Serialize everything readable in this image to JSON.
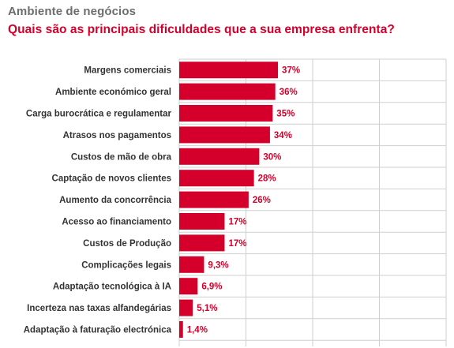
{
  "header": {
    "kicker": "Ambiente de negócios",
    "title": "Quais são as principais dificuldades que a sua empresa enfrenta?"
  },
  "colors": {
    "bar": "#d4002b",
    "value_label": "#d4002b",
    "category_label": "#333333",
    "grid": "#cfcfcf",
    "kicker": "#6d6d6d",
    "title": "#d4002b"
  },
  "chart_data": {
    "type": "bar",
    "orientation": "horizontal",
    "categories": [
      "Margens comerciais",
      "Ambiente económico geral",
      "Carga burocrática e regulamentar",
      "Atrasos nos pagamentos",
      "Custos de mão de obra",
      "Captação de novos clientes",
      "Aumento da concorrência",
      "Acesso ao financiamento",
      "Custos de Produção",
      "Complicações legais",
      "Adaptação tecnológica à IA",
      "Incerteza nas taxas alfandegárias",
      "Adaptação à faturação electrónica"
    ],
    "values": [
      37,
      36,
      35,
      34,
      30,
      28,
      26,
      17,
      17,
      9.3,
      6.9,
      5.1,
      1.4
    ],
    "value_labels": [
      "37%",
      "36%",
      "35%",
      "34%",
      "30%",
      "28%",
      "26%",
      "17%",
      "17%",
      "9,3%",
      "6,9%",
      "5,1%",
      "1,4%"
    ],
    "xlim": [
      0,
      100
    ],
    "grid": true,
    "legend": "none"
  }
}
